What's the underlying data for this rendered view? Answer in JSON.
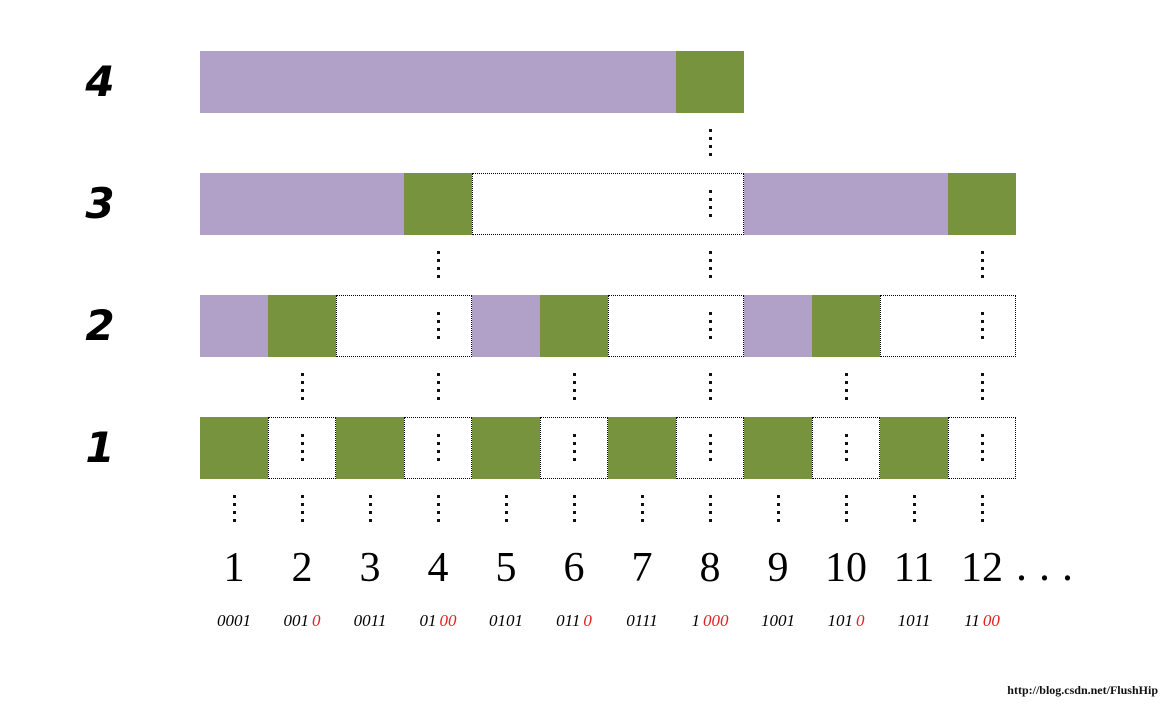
{
  "colors": {
    "purple": "#b1a0c7",
    "green": "#78933d",
    "red": "#e02020",
    "dot": "#111111"
  },
  "diagram": {
    "units_total": 12,
    "rows": [
      {
        "label": "4",
        "segments": [
          {
            "type": "purple",
            "from": 1,
            "span": 7
          },
          {
            "type": "green",
            "from": 8,
            "span": 1
          }
        ],
        "below_dots_at_units": [
          8
        ]
      },
      {
        "label": "3",
        "segments": [
          {
            "type": "purple",
            "from": 1,
            "span": 3
          },
          {
            "type": "green",
            "from": 4,
            "span": 1
          },
          {
            "type": "dotted",
            "from": 5,
            "span": 4,
            "inner_dots_at_units": [
              8
            ]
          },
          {
            "type": "purple",
            "from": 9,
            "span": 3
          },
          {
            "type": "green",
            "from": 12,
            "span": 1
          }
        ],
        "below_dots_at_units": [
          4,
          8,
          12
        ]
      },
      {
        "label": "2",
        "segments": [
          {
            "type": "purple",
            "from": 1,
            "span": 1
          },
          {
            "type": "green",
            "from": 2,
            "span": 1
          },
          {
            "type": "dotted",
            "from": 3,
            "span": 2,
            "inner_dots_at_units": [
              4
            ]
          },
          {
            "type": "purple",
            "from": 5,
            "span": 1
          },
          {
            "type": "green",
            "from": 6,
            "span": 1
          },
          {
            "type": "dotted",
            "from": 7,
            "span": 2,
            "inner_dots_at_units": [
              8
            ]
          },
          {
            "type": "purple",
            "from": 9,
            "span": 1
          },
          {
            "type": "green",
            "from": 10,
            "span": 1
          },
          {
            "type": "dotted",
            "from": 11,
            "span": 2,
            "inner_dots_at_units": [
              12
            ]
          }
        ],
        "below_dots_at_units": [
          2,
          4,
          6,
          8,
          10,
          12
        ]
      },
      {
        "label": "1",
        "segments": [
          {
            "type": "green",
            "from": 1,
            "span": 1
          },
          {
            "type": "dotted",
            "from": 2,
            "span": 1,
            "inner_dots_at_units": [
              2
            ]
          },
          {
            "type": "green",
            "from": 3,
            "span": 1
          },
          {
            "type": "dotted",
            "from": 4,
            "span": 1,
            "inner_dots_at_units": [
              4
            ]
          },
          {
            "type": "green",
            "from": 5,
            "span": 1
          },
          {
            "type": "dotted",
            "from": 6,
            "span": 1,
            "inner_dots_at_units": [
              6
            ]
          },
          {
            "type": "green",
            "from": 7,
            "span": 1
          },
          {
            "type": "dotted",
            "from": 8,
            "span": 1,
            "inner_dots_at_units": [
              8
            ]
          },
          {
            "type": "green",
            "from": 9,
            "span": 1
          },
          {
            "type": "dotted",
            "from": 10,
            "span": 1,
            "inner_dots_at_units": [
              10
            ]
          },
          {
            "type": "green",
            "from": 11,
            "span": 1
          },
          {
            "type": "dotted",
            "from": 12,
            "span": 1,
            "inner_dots_at_units": [
              12
            ]
          }
        ],
        "below_dots_at_units": [
          1,
          2,
          3,
          4,
          5,
          6,
          7,
          8,
          9,
          10,
          11,
          12
        ]
      }
    ]
  },
  "axis": {
    "numbers": [
      "1",
      "2",
      "3",
      "4",
      "5",
      "6",
      "7",
      "8",
      "9",
      "10",
      "11",
      "12"
    ],
    "more_label": "...",
    "binary": [
      {
        "prefix": "0001",
        "lowbit": ""
      },
      {
        "prefix": "001",
        "lowbit": "0"
      },
      {
        "prefix": "0011",
        "lowbit": ""
      },
      {
        "prefix": "01",
        "lowbit": "00"
      },
      {
        "prefix": "0101",
        "lowbit": ""
      },
      {
        "prefix": "011",
        "lowbit": "0"
      },
      {
        "prefix": "0111",
        "lowbit": ""
      },
      {
        "prefix": "1",
        "lowbit": "000"
      },
      {
        "prefix": "1001",
        "lowbit": ""
      },
      {
        "prefix": "101",
        "lowbit": "0"
      },
      {
        "prefix": "1011",
        "lowbit": ""
      },
      {
        "prefix": "11",
        "lowbit": "00"
      }
    ]
  },
  "watermark": "http://blog.csdn.net/FlushHip"
}
